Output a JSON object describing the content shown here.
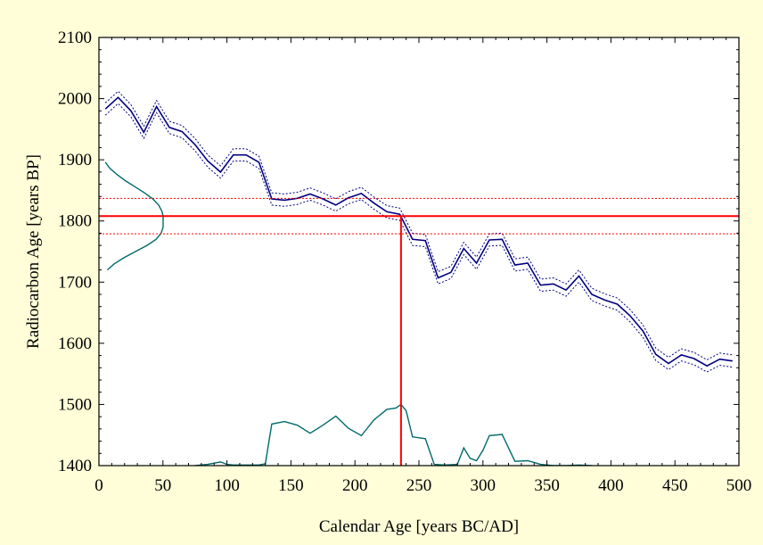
{
  "chart_data": {
    "type": "line",
    "title": "",
    "xlabel": "Calendar Age [years BC/AD]",
    "ylabel": "Radiocarbon Age [years BP]",
    "xlim": [
      0,
      500
    ],
    "ylim": [
      1400,
      2100
    ],
    "xticks": [
      0,
      50,
      100,
      150,
      200,
      250,
      300,
      350,
      400,
      450,
      500
    ],
    "yticks": [
      1400,
      1500,
      1600,
      1700,
      1800,
      1900,
      2000,
      2100
    ],
    "grid": false,
    "colors": {
      "background": "#fffed8",
      "plot_background": "#ffffff",
      "calibration_curve": "#000080",
      "measurement": "#ff0000",
      "distributions": "#006a6a"
    },
    "calibration_curve": {
      "x": [
        5,
        15,
        25,
        35,
        45,
        55,
        65,
        75,
        85,
        95,
        105,
        115,
        125,
        135,
        145,
        155,
        165,
        175,
        185,
        195,
        205,
        215,
        225,
        235,
        245,
        255,
        265,
        275,
        285,
        295,
        305,
        315,
        325,
        335,
        345,
        355,
        365,
        375,
        385,
        395,
        405,
        415,
        425,
        435,
        445,
        455,
        465,
        475,
        485,
        495
      ],
      "y": [
        1983,
        2002,
        1980,
        1945,
        1987,
        1953,
        1946,
        1925,
        1898,
        1880,
        1908,
        1908,
        1896,
        1836,
        1834,
        1837,
        1844,
        1836,
        1826,
        1838,
        1845,
        1829,
        1815,
        1811,
        1770,
        1768,
        1707,
        1716,
        1755,
        1731,
        1769,
        1770,
        1728,
        1731,
        1695,
        1697,
        1687,
        1710,
        1680,
        1671,
        1664,
        1645,
        1620,
        1582,
        1567,
        1581,
        1575,
        1563,
        1574,
        1571
      ],
      "error": 10
    },
    "measurement": {
      "age_bp": 1808,
      "sigma": 29,
      "calibrated_age": 236
    },
    "measurement_distribution": {
      "y": [
        1720,
        1730,
        1740,
        1750,
        1760,
        1770,
        1780,
        1790,
        1800,
        1808,
        1816,
        1826,
        1836,
        1846,
        1856,
        1866,
        1876,
        1886,
        1896
      ],
      "density": [
        0.13,
        0.24,
        0.39,
        0.57,
        0.75,
        0.89,
        0.97,
        1.0,
        1.0,
        1.0,
        0.98,
        0.93,
        0.84,
        0.71,
        0.56,
        0.41,
        0.28,
        0.17,
        0.1
      ]
    },
    "calibrated_distribution": {
      "x": [
        75,
        85,
        95,
        100,
        105,
        115,
        125,
        130,
        135,
        145,
        155,
        165,
        175,
        185,
        195,
        205,
        215,
        225,
        232,
        236,
        240,
        245,
        255,
        262,
        270,
        280,
        285,
        290,
        295,
        300,
        305,
        315,
        325,
        335,
        345,
        355,
        365,
        375,
        385
      ],
      "y": [
        1400,
        1402,
        1406,
        1402,
        1401,
        1401,
        1401,
        1403,
        1468,
        1472,
        1466,
        1453,
        1466,
        1481,
        1461,
        1449,
        1475,
        1492,
        1494,
        1500,
        1490,
        1447,
        1444,
        1402,
        1401,
        1402,
        1429,
        1412,
        1408,
        1425,
        1449,
        1451,
        1407,
        1408,
        1402,
        1400,
        1400,
        1401,
        1400
      ]
    }
  }
}
